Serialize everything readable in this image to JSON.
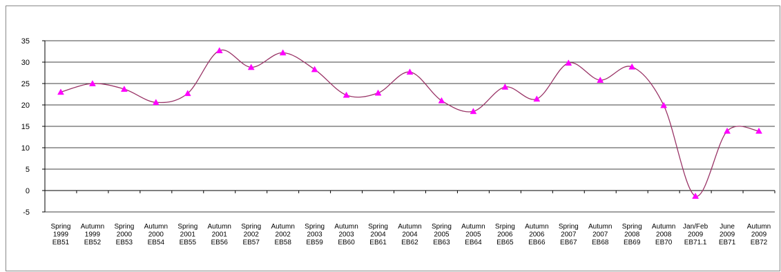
{
  "chart_data": {
    "type": "line",
    "title": "",
    "xlabel": "",
    "ylabel": "",
    "ylim": [
      -5,
      35
    ],
    "yticks": [
      -5,
      0,
      5,
      10,
      15,
      20,
      25,
      30,
      35
    ],
    "grid": true,
    "legend": "none",
    "smooth": true,
    "categories": [
      [
        "Spring",
        "1999",
        "EB51"
      ],
      [
        "Autumn",
        "1999",
        "EB52"
      ],
      [
        "Spring",
        "2000",
        "EB53"
      ],
      [
        "Autumn",
        "2000",
        "EB54"
      ],
      [
        "Spring",
        "2001",
        "EB55"
      ],
      [
        "Autumn",
        "2001",
        "EB56"
      ],
      [
        "Spring",
        "2002",
        "EB57"
      ],
      [
        "Autumn",
        "2002",
        "EB58"
      ],
      [
        "Spring",
        "2003",
        "EB59"
      ],
      [
        "Autumn",
        "2003",
        "EB60"
      ],
      [
        "Spring",
        "2004",
        "EB61"
      ],
      [
        "Autumn",
        "2004",
        "EB62"
      ],
      [
        "Spring",
        "2005",
        "EB63"
      ],
      [
        "Autumn",
        "2005",
        "EB64"
      ],
      [
        "Srping",
        "2006",
        "EB65"
      ],
      [
        "Autumn",
        "2006",
        "EB66"
      ],
      [
        "Spring",
        "2007",
        "EB67"
      ],
      [
        "Autumn",
        "2007",
        "EB68"
      ],
      [
        "Spring",
        "2008",
        "EB69"
      ],
      [
        "Autumn",
        "2008",
        "EB70"
      ],
      [
        "Jan/Feb",
        "2009",
        "EB71.1"
      ],
      [
        "June",
        "2009",
        "EB71"
      ],
      [
        "Autumn",
        "2009",
        "EB72"
      ]
    ],
    "series": [
      {
        "values": [
          23,
          25,
          23.7,
          20.6,
          22.7,
          32.7,
          28.8,
          32.2,
          28.3,
          22.3,
          22.8,
          27.7,
          21,
          18.5,
          24.2,
          21.4,
          29.8,
          25.8,
          28.9,
          19.9,
          -1.3,
          13.9,
          13.9
        ]
      }
    ],
    "colors": {
      "line": "#993366",
      "marker": "#ff00ff",
      "grid": "#000000",
      "axis": "#000000"
    },
    "marker": "triangle"
  }
}
